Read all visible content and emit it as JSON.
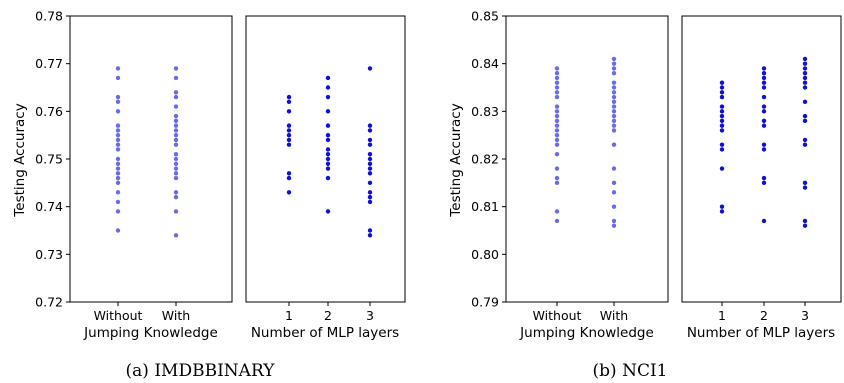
{
  "chart_data": [
    {
      "type": "scatter",
      "caption": "(a) IMDBBINARY",
      "ylabel": "Testing Accuracy",
      "ylim": [
        0.72,
        0.78
      ],
      "yticks": [
        "0.72",
        "0.73",
        "0.74",
        "0.75",
        "0.76",
        "0.77",
        "0.78"
      ],
      "panels": [
        {
          "xlabel": "Jumping Knowledge",
          "categories": [
            "Without",
            "With"
          ],
          "color": "#6b6be8",
          "series": [
            {
              "category": "Without",
              "values": [
                0.769,
                0.767,
                0.763,
                0.762,
                0.76,
                0.757,
                0.756,
                0.755,
                0.754,
                0.753,
                0.752,
                0.75,
                0.749,
                0.748,
                0.747,
                0.746,
                0.745,
                0.743,
                0.741,
                0.739,
                0.735
              ]
            },
            {
              "category": "With",
              "values": [
                0.769,
                0.767,
                0.764,
                0.763,
                0.761,
                0.759,
                0.758,
                0.757,
                0.756,
                0.755,
                0.754,
                0.753,
                0.751,
                0.75,
                0.749,
                0.748,
                0.747,
                0.746,
                0.743,
                0.742,
                0.739,
                0.734
              ]
            }
          ]
        },
        {
          "xlabel": "Number of MLP layers",
          "categories": [
            "1",
            "2",
            "3"
          ],
          "color": "#1010d8",
          "series": [
            {
              "category": "1",
              "values": [
                0.763,
                0.762,
                0.76,
                0.757,
                0.756,
                0.755,
                0.754,
                0.753,
                0.747,
                0.746,
                0.743
              ]
            },
            {
              "category": "2",
              "values": [
                0.767,
                0.765,
                0.763,
                0.76,
                0.757,
                0.755,
                0.754,
                0.752,
                0.751,
                0.75,
                0.749,
                0.748,
                0.746,
                0.739
              ]
            },
            {
              "category": "3",
              "values": [
                0.769,
                0.757,
                0.756,
                0.754,
                0.753,
                0.751,
                0.75,
                0.749,
                0.748,
                0.747,
                0.745,
                0.743,
                0.742,
                0.741,
                0.735,
                0.734
              ]
            }
          ]
        }
      ]
    },
    {
      "type": "scatter",
      "caption": "(b) NCI1",
      "ylabel": "Testing Accuracy",
      "ylim": [
        0.79,
        0.85
      ],
      "yticks": [
        "0.79",
        "0.80",
        "0.81",
        "0.82",
        "0.83",
        "0.84",
        "0.85"
      ],
      "panels": [
        {
          "xlabel": "Jumping Knowledge",
          "categories": [
            "Without",
            "With"
          ],
          "color": "#6b6be8",
          "series": [
            {
              "category": "Without",
              "values": [
                0.839,
                0.838,
                0.837,
                0.836,
                0.835,
                0.834,
                0.833,
                0.831,
                0.83,
                0.829,
                0.828,
                0.827,
                0.826,
                0.825,
                0.824,
                0.823,
                0.821,
                0.818,
                0.816,
                0.815,
                0.809,
                0.807
              ]
            },
            {
              "category": "With",
              "values": [
                0.841,
                0.84,
                0.839,
                0.838,
                0.836,
                0.835,
                0.834,
                0.833,
                0.832,
                0.831,
                0.83,
                0.829,
                0.828,
                0.827,
                0.826,
                0.823,
                0.818,
                0.815,
                0.813,
                0.81,
                0.807,
                0.806
              ]
            }
          ]
        },
        {
          "xlabel": "Number of MLP layers",
          "categories": [
            "1",
            "2",
            "3"
          ],
          "color": "#1010d8",
          "series": [
            {
              "category": "1",
              "values": [
                0.836,
                0.835,
                0.834,
                0.833,
                0.831,
                0.83,
                0.829,
                0.828,
                0.827,
                0.826,
                0.823,
                0.822,
                0.818,
                0.81,
                0.809
              ]
            },
            {
              "category": "2",
              "values": [
                0.839,
                0.838,
                0.837,
                0.836,
                0.835,
                0.833,
                0.831,
                0.83,
                0.828,
                0.827,
                0.823,
                0.822,
                0.816,
                0.815,
                0.807
              ]
            },
            {
              "category": "3",
              "values": [
                0.841,
                0.84,
                0.839,
                0.838,
                0.837,
                0.836,
                0.835,
                0.832,
                0.829,
                0.828,
                0.824,
                0.823,
                0.815,
                0.814,
                0.807,
                0.806
              ]
            }
          ]
        }
      ]
    }
  ]
}
